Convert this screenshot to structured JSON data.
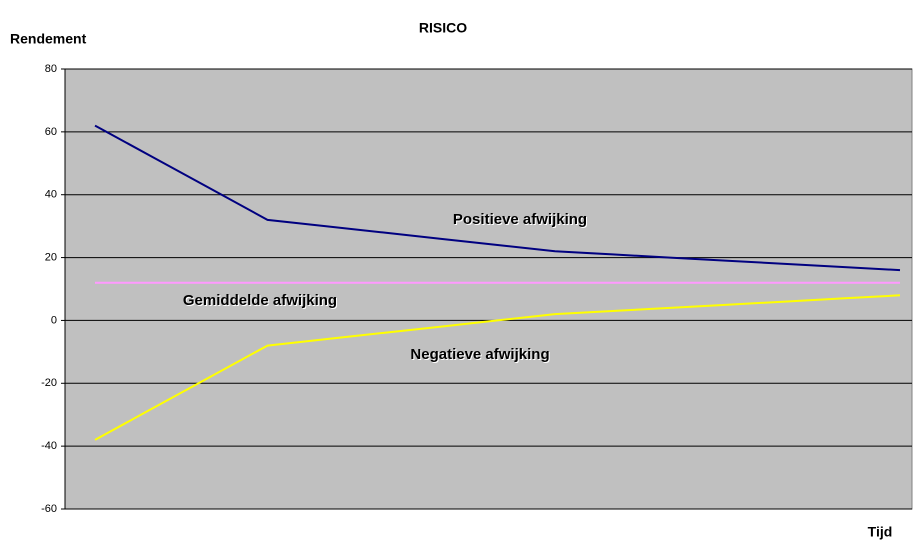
{
  "chart_data": {
    "type": "line",
    "title": "RISICO",
    "y_label": "Rendement",
    "x_label": "Tijd",
    "categories": [
      null,
      null,
      null,
      null,
      null,
      null,
      null,
      null,
      null,
      null,
      null,
      null,
      null,
      null,
      null
    ],
    "series": [
      {
        "name": "Positieve afwijking",
        "color": "#000080",
        "values": [
          62,
          52,
          42,
          32,
          30,
          28,
          26,
          24,
          22,
          21,
          20,
          19,
          18,
          17,
          16
        ]
      },
      {
        "name": "Gemiddelde afwijking",
        "color": "#ff99ff",
        "values": [
          12,
          12,
          12,
          12,
          12,
          12,
          12,
          12,
          12,
          12,
          12,
          12,
          12,
          12,
          12
        ]
      },
      {
        "name": "Negatieve afwijking",
        "color": "#ffff00",
        "values": [
          -38,
          -28,
          -18,
          -8,
          -6,
          -4,
          -2,
          0,
          2,
          3,
          4,
          5,
          6,
          7,
          8
        ]
      }
    ],
    "ylim": [
      -60,
      80
    ],
    "yticks": [
      -60,
      -40,
      -20,
      0,
      20,
      40,
      60,
      80
    ],
    "grid": true,
    "plot_background": "#c0c0c0"
  }
}
